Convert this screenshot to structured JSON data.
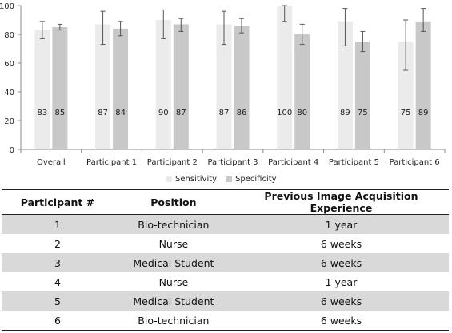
{
  "chart_data": {
    "type": "bar",
    "categories": [
      "Overall",
      "Participant 1",
      "Participant 2",
      "Participant 3",
      "Participant 4",
      "Participant 5",
      "Participant 6"
    ],
    "series": [
      {
        "name": "Sensitivity",
        "color": "#ebebeb",
        "values": [
          83,
          87,
          90,
          87,
          100,
          89,
          75
        ],
        "error_low": [
          77,
          73,
          77,
          73,
          89,
          72,
          55
        ],
        "error_high": [
          89,
          96,
          97,
          96,
          100,
          98,
          90
        ]
      },
      {
        "name": "Specificity",
        "color": "#c8c8c8",
        "values": [
          85,
          84,
          87,
          86,
          80,
          75,
          89
        ],
        "error_low": [
          83,
          79,
          82,
          81,
          73,
          68,
          82
        ],
        "error_high": [
          87,
          89,
          91,
          91,
          87,
          82,
          98
        ]
      }
    ],
    "xlabel": "",
    "ylabel": "",
    "ylim": [
      0,
      100
    ],
    "yticks": [
      0,
      20,
      40,
      60,
      80,
      100
    ],
    "grid": false,
    "legend_position": "bottom"
  },
  "table": {
    "headers": [
      "Participant #",
      "Position",
      "Previous Image Acquisition Experience"
    ],
    "rows": [
      [
        "1",
        "Bio-technician",
        "1 year"
      ],
      [
        "2",
        "Nurse",
        "6 weeks"
      ],
      [
        "3",
        "Medical Student",
        "6 weeks"
      ],
      [
        "4",
        "Nurse",
        "1 year"
      ],
      [
        "5",
        "Medical Student",
        "6 weeks"
      ],
      [
        "6",
        "Bio-technician",
        "6 weeks"
      ]
    ]
  }
}
